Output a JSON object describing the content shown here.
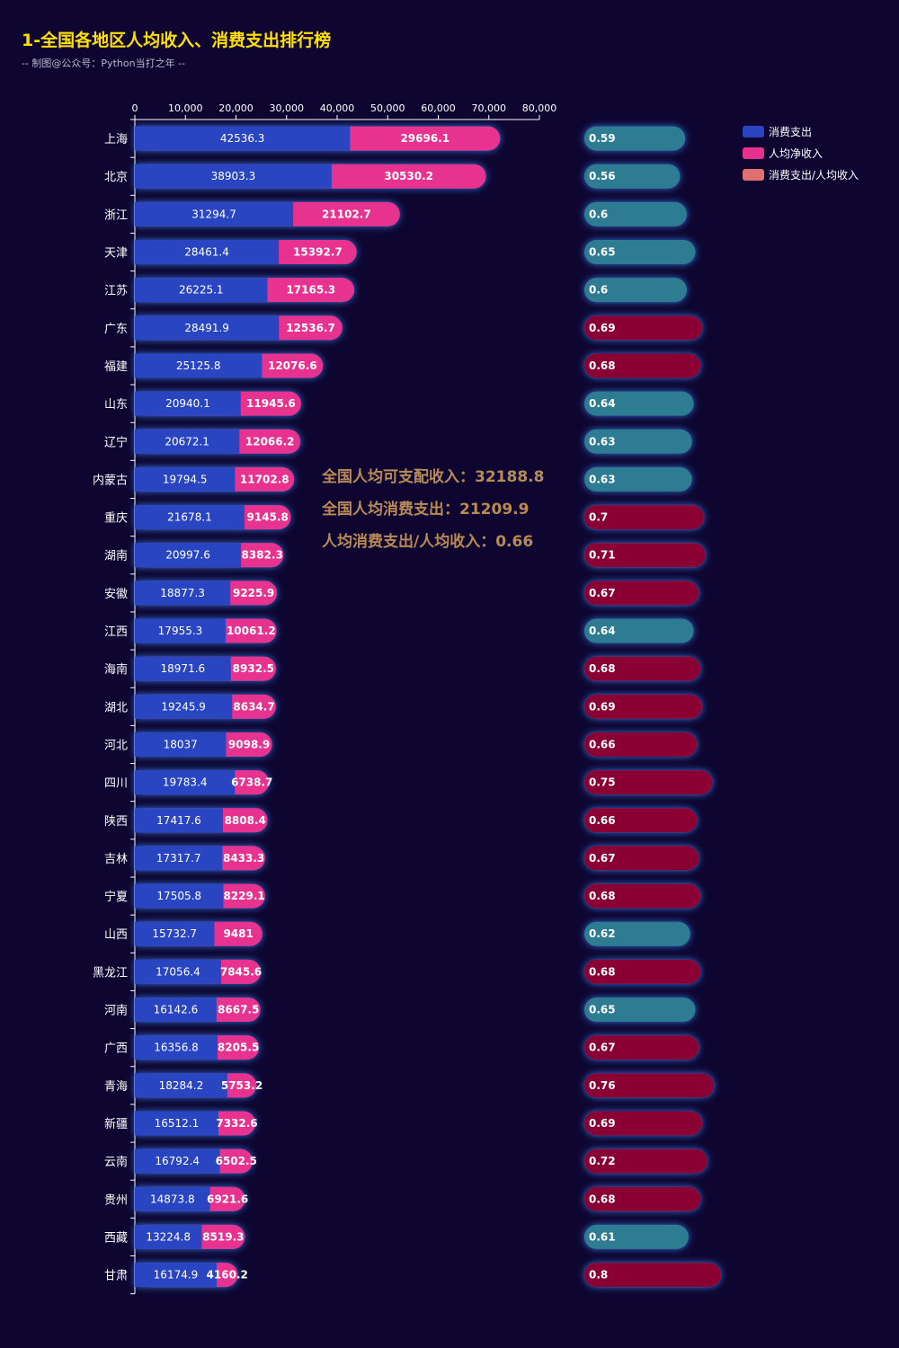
{
  "title": "1-全国各地区人均收入、消费支出排行榜",
  "subtitle": "-- 制图@公众号：Python当打之年 --",
  "colors": {
    "background": "#0e0631",
    "spending": "#2a44c2",
    "income": "#e8308f",
    "ratio_high": "#8a0032",
    "ratio_low": "#2f7b92",
    "legend_ratio": "#e07070",
    "annotation": "#b98a54",
    "title": "#ffe000"
  },
  "chart_data": {
    "type": "bar",
    "stacked": true,
    "orientation": "horizontal",
    "xlim": [
      0,
      80000
    ],
    "xticks": [
      "0",
      "10,000",
      "20,000",
      "30,000",
      "40,000",
      "50,000",
      "60,000",
      "70,000",
      "80,000"
    ],
    "categories": [
      "上海",
      "北京",
      "浙江",
      "天津",
      "江苏",
      "广东",
      "福建",
      "山东",
      "辽宁",
      "内蒙古",
      "重庆",
      "湖南",
      "安徽",
      "江西",
      "海南",
      "湖北",
      "河北",
      "四川",
      "陕西",
      "吉林",
      "宁夏",
      "山西",
      "黑龙江",
      "河南",
      "广西",
      "青海",
      "新疆",
      "云南",
      "贵州",
      "西藏",
      "甘肃"
    ],
    "series": [
      {
        "name": "消费支出",
        "values": [
          42536.3,
          38903.3,
          31294.7,
          28461.4,
          26225.1,
          28491.9,
          25125.8,
          20940.1,
          20672.1,
          19794.5,
          21678.1,
          20997.6,
          18877.3,
          17955.3,
          18971.6,
          19245.9,
          18037,
          19783.4,
          17417.6,
          17317.7,
          17505.8,
          15732.7,
          17056.4,
          16142.6,
          16356.8,
          18284.2,
          16512.1,
          16792.4,
          14873.8,
          13224.8,
          16174.9
        ]
      },
      {
        "name": "人均净收入",
        "values": [
          29696.1,
          30530.2,
          21102.7,
          15392.7,
          17165.3,
          12536.7,
          12076.6,
          11945.6,
          12066.2,
          11702.8,
          9145.8,
          8382.3,
          9225.9,
          10061.2,
          8932.5,
          8634.7,
          9098.9,
          6738.7,
          8808.4,
          8433.3,
          8229.1,
          9481,
          7845.6,
          8667.5,
          8205.5,
          5753.2,
          7332.6,
          6502.5,
          6921.6,
          8519.3,
          4160.2
        ]
      },
      {
        "name": "消费支出/人均收入",
        "values": [
          0.59,
          0.56,
          0.6,
          0.65,
          0.6,
          0.69,
          0.68,
          0.64,
          0.63,
          0.63,
          0.7,
          0.71,
          0.67,
          0.64,
          0.68,
          0.69,
          0.66,
          0.75,
          0.66,
          0.67,
          0.68,
          0.62,
          0.68,
          0.65,
          0.67,
          0.76,
          0.69,
          0.72,
          0.68,
          0.61,
          0.8
        ]
      }
    ],
    "legend_position": "top-right",
    "annotations": [
      "全国人均可支配收入：32188.8",
      "全国人均消费支出：21209.9",
      "人均消费支出/人均收入：0.66"
    ]
  }
}
